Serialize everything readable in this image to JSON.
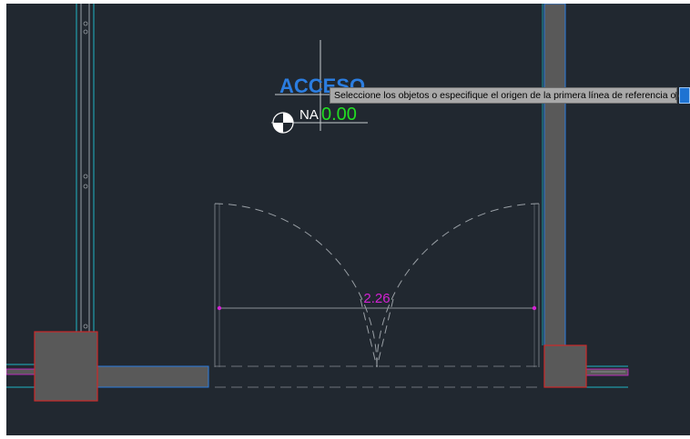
{
  "drawing": {
    "title_text": "ACCESO",
    "level_prefix": "NA",
    "level_value": "0.00",
    "dimension_value": "2.26"
  },
  "command_prompt": {
    "text": "Seleccione los objetos o especifique el origen de la primera línea de referencia o",
    "options_icon": "options-icon"
  },
  "colors": {
    "canvas_bg": "#212830",
    "wall_fill": "#595959",
    "wall_outline": "#2b7de0",
    "column_outline": "#cc2a2a",
    "cyan_line": "#1fb5c4",
    "dimension": "#d422d4",
    "level_value": "#22dd22",
    "title": "#2b7de0"
  }
}
